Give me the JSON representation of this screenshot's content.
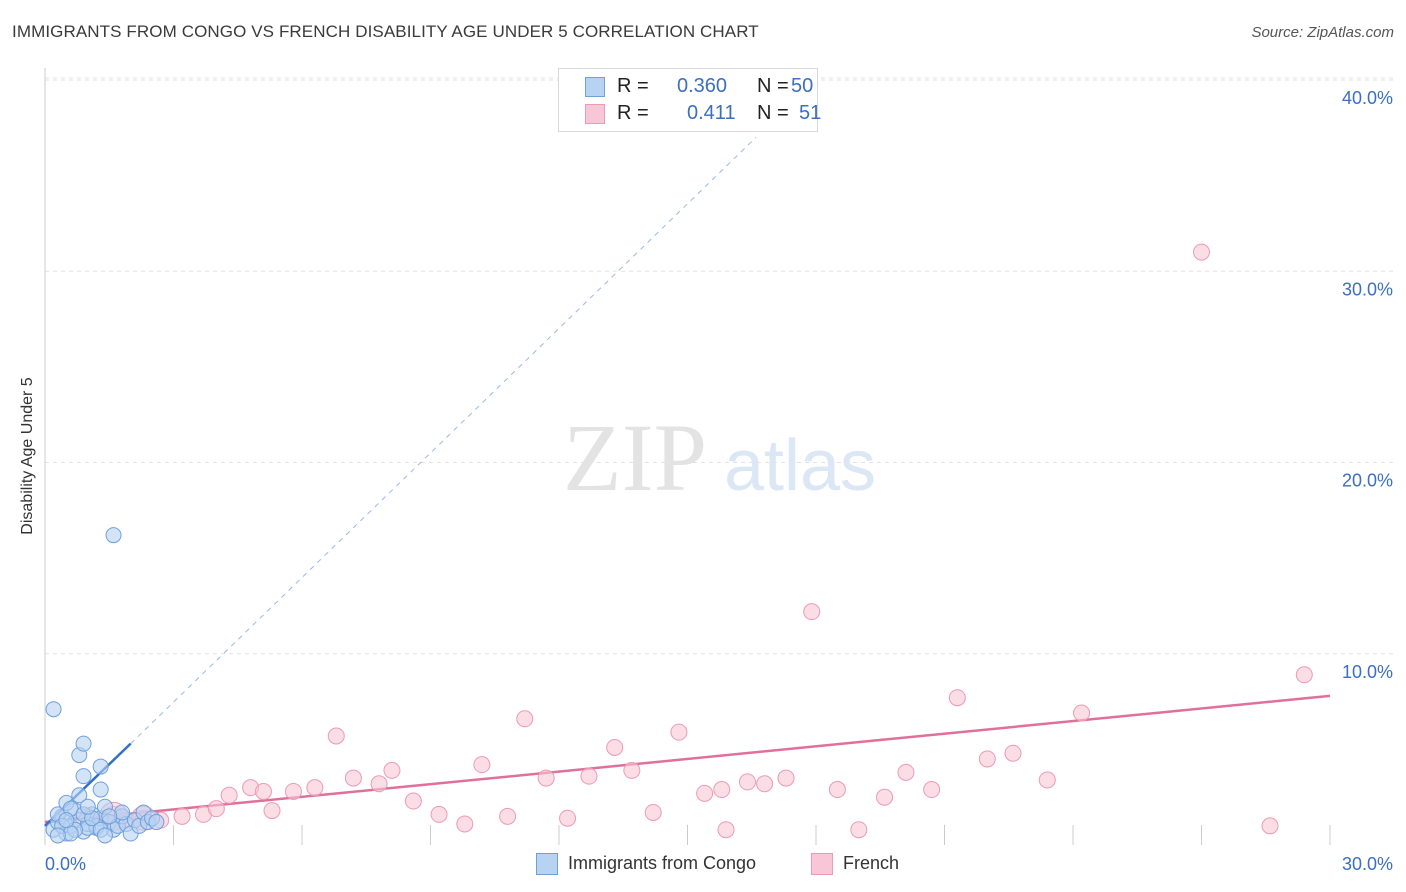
{
  "title": "IMMIGRANTS FROM CONGO VS FRENCH DISABILITY AGE UNDER 5 CORRELATION CHART",
  "source": "Source: ZipAtlas.com",
  "watermark": {
    "zip": "ZIP",
    "atlas": "atlas"
  },
  "legend_top": [
    {
      "r_label": "R =",
      "r_value": "0.360",
      "n_label": "N =",
      "n_value": "50"
    },
    {
      "r_label": "R =",
      "r_value": "0.411",
      "n_label": "N =",
      "n_value": "51"
    }
  ],
  "legend_bottom": [
    "Immigrants from Congo",
    "French"
  ],
  "colors": {
    "blue_fill": "#b8d2f2",
    "blue_stroke": "#6f9fdd",
    "blue_line": "#2f6fd0",
    "pink_fill": "#f8c6d6",
    "pink_stroke": "#ec9ab5",
    "pink_line": "#e0709a",
    "axis_text": "#3a6fc4",
    "grid": "#e2e2e2"
  },
  "chart_data": {
    "type": "scatter",
    "title": "IMMIGRANTS FROM CONGO VS FRENCH DISABILITY AGE UNDER 5 CORRELATION CHART",
    "xlabel": "",
    "ylabel": "Disability Age Under 5",
    "xlim": [
      0,
      30
    ],
    "ylim": [
      0,
      40
    ],
    "x_tick_labels": [
      "0.0%",
      "30.0%"
    ],
    "y_ticks": [
      10,
      20,
      30,
      40
    ],
    "y_tick_labels": [
      "10.0%",
      "20.0%",
      "30.0%",
      "40.0%"
    ],
    "series": [
      {
        "name": "Immigrants from Congo",
        "color": "blue",
        "points": [
          [
            0.2,
            0.8
          ],
          [
            0.3,
            1.2
          ],
          [
            0.4,
            1.5
          ],
          [
            0.5,
            0.6
          ],
          [
            0.6,
            1.0
          ],
          [
            0.7,
            1.8
          ],
          [
            0.8,
            1.3
          ],
          [
            0.9,
            0.7
          ],
          [
            1.0,
            1.1
          ],
          [
            1.1,
            1.6
          ],
          [
            1.2,
            0.9
          ],
          [
            1.3,
            1.4
          ],
          [
            1.4,
            2.0
          ],
          [
            1.5,
            1.2
          ],
          [
            1.6,
            0.8
          ],
          [
            1.7,
            1.0
          ],
          [
            1.8,
            1.5
          ],
          [
            1.9,
            1.1
          ],
          [
            2.0,
            0.6
          ],
          [
            2.1,
            1.3
          ],
          [
            2.2,
            1.0
          ],
          [
            2.3,
            1.7
          ],
          [
            2.4,
            1.2
          ],
          [
            1.2,
            1.0
          ],
          [
            0.3,
            1.6
          ],
          [
            0.5,
            2.2
          ],
          [
            0.6,
            1.9
          ],
          [
            0.8,
            2.6
          ],
          [
            0.9,
            1.6
          ],
          [
            1.0,
            0.9
          ],
          [
            1.1,
            1.4
          ],
          [
            1.3,
            0.8
          ],
          [
            0.4,
            1.0
          ],
          [
            0.7,
            0.8
          ],
          [
            2.5,
            1.4
          ],
          [
            2.6,
            1.2
          ],
          [
            1.8,
            1.7
          ],
          [
            0.9,
            3.6
          ],
          [
            0.8,
            4.7
          ],
          [
            0.9,
            5.3
          ],
          [
            1.3,
            2.9
          ],
          [
            1.3,
            4.1
          ],
          [
            0.2,
            7.1
          ],
          [
            1.6,
            16.2
          ],
          [
            1.4,
            0.5
          ],
          [
            0.6,
            0.6
          ],
          [
            0.5,
            1.3
          ],
          [
            1.0,
            2.0
          ],
          [
            0.3,
            0.5
          ],
          [
            1.5,
            1.5
          ]
        ],
        "trend": {
          "x": [
            0.0,
            2.0
          ],
          "y": [
            1.0,
            5.3
          ]
        },
        "trend_extension": {
          "x": [
            2.0,
            16.6
          ],
          "y": [
            5.3,
            37.0
          ]
        }
      },
      {
        "name": "French",
        "color": "pink",
        "points": [
          [
            1.0,
            1.5
          ],
          [
            1.6,
            1.6
          ],
          [
            1.9,
            1.3
          ],
          [
            2.3,
            1.4
          ],
          [
            2.7,
            1.3
          ],
          [
            3.2,
            1.5
          ],
          [
            3.7,
            1.6
          ],
          [
            4.0,
            1.9
          ],
          [
            4.3,
            2.6
          ],
          [
            4.8,
            3.0
          ],
          [
            5.1,
            2.8
          ],
          [
            5.3,
            1.8
          ],
          [
            5.8,
            2.8
          ],
          [
            6.3,
            3.0
          ],
          [
            6.8,
            5.7
          ],
          [
            7.2,
            3.5
          ],
          [
            7.8,
            3.2
          ],
          [
            8.1,
            3.9
          ],
          [
            8.6,
            2.3
          ],
          [
            9.2,
            1.6
          ],
          [
            9.8,
            1.1
          ],
          [
            10.2,
            4.2
          ],
          [
            10.8,
            1.5
          ],
          [
            11.2,
            6.6
          ],
          [
            11.7,
            3.5
          ],
          [
            12.2,
            1.4
          ],
          [
            12.7,
            3.6
          ],
          [
            13.3,
            5.1
          ],
          [
            13.7,
            3.9
          ],
          [
            14.2,
            1.7
          ],
          [
            14.8,
            5.9
          ],
          [
            15.4,
            2.7
          ],
          [
            15.9,
            0.8
          ],
          [
            16.4,
            3.3
          ],
          [
            16.8,
            3.2
          ],
          [
            17.3,
            3.5
          ],
          [
            17.9,
            12.2
          ],
          [
            18.5,
            2.9
          ],
          [
            19.0,
            0.8
          ],
          [
            19.6,
            2.5
          ],
          [
            20.1,
            3.8
          ],
          [
            20.7,
            2.9
          ],
          [
            21.3,
            7.7
          ],
          [
            22.0,
            4.5
          ],
          [
            22.6,
            4.8
          ],
          [
            23.4,
            3.4
          ],
          [
            24.2,
            6.9
          ],
          [
            15.8,
            2.9
          ],
          [
            27.0,
            31.0
          ],
          [
            28.6,
            1.0
          ],
          [
            29.4,
            8.9
          ]
        ],
        "trend": {
          "x": [
            0.0,
            30.0
          ],
          "y": [
            1.2,
            7.8
          ]
        }
      }
    ]
  }
}
